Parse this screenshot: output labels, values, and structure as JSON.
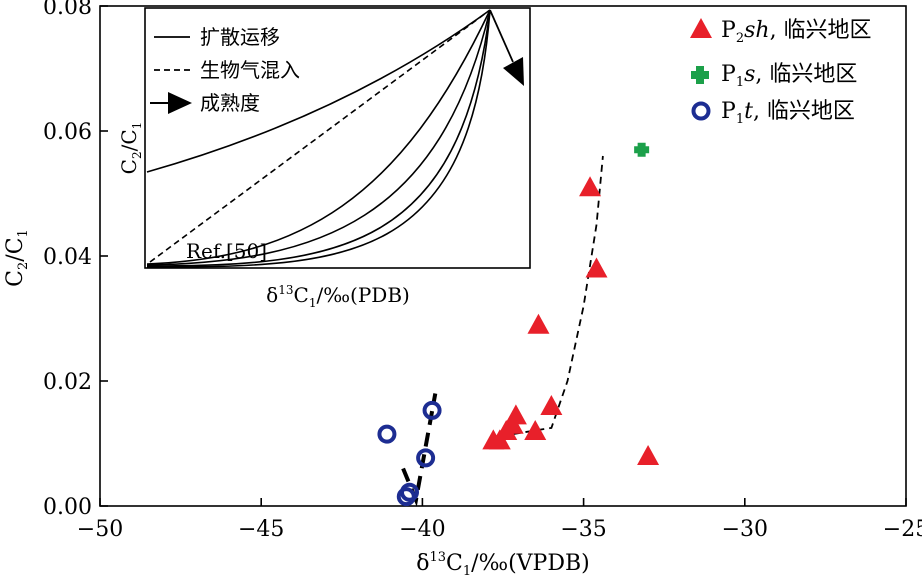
{
  "chart_data": {
    "type": "scatter",
    "xlabel": "δ13C1/‰(VPDB)",
    "ylabel": "C2/C1",
    "xlim": [
      -50,
      -25
    ],
    "ylim": [
      0,
      0.08
    ],
    "x_ticks": [
      "−50",
      "−45",
      "−40",
      "−35",
      "−30",
      "−25"
    ],
    "y_ticks": [
      "0.00",
      "0.02",
      "0.04",
      "0.06",
      "0.08"
    ],
    "series": [
      {
        "name": "P2sh, 临兴地区",
        "marker": "triangle",
        "color": "#e8202a",
        "points": [
          [
            -34.8,
            0.051
          ],
          [
            -34.6,
            0.038
          ],
          [
            -36.4,
            0.029
          ],
          [
            -36.0,
            0.016
          ],
          [
            -37.1,
            0.0145
          ],
          [
            -37.2,
            0.013
          ],
          [
            -37.4,
            0.012
          ],
          [
            -36.5,
            0.012
          ],
          [
            -37.8,
            0.0105
          ],
          [
            -37.6,
            0.0105
          ],
          [
            -33.0,
            0.008
          ]
        ]
      },
      {
        "name": "P1s, 临兴地区",
        "marker": "cross",
        "color": "#1ca04a",
        "points": [
          [
            -33.2,
            0.057
          ]
        ]
      },
      {
        "name": "P1t, 临兴地区",
        "marker": "circle",
        "color": "#1d2d92",
        "points": [
          [
            -41.1,
            0.0115
          ],
          [
            -39.7,
            0.0153
          ],
          [
            -39.9,
            0.0077
          ],
          [
            -40.4,
            0.0022
          ],
          [
            -40.5,
            0.0015
          ]
        ]
      }
    ],
    "trend_lines": [
      {
        "style": "dashed",
        "points": [
          [
            -37.8,
            0.0095
          ],
          [
            -37.2,
            0.0115
          ],
          [
            -36.6,
            0.012
          ],
          [
            -36.0,
            0.0125
          ],
          [
            -35.5,
            0.02
          ],
          [
            -35.0,
            0.032
          ],
          [
            -34.6,
            0.045
          ],
          [
            -34.4,
            0.056
          ]
        ]
      },
      {
        "style": "dashed-bold",
        "points": [
          [
            -40.6,
            0.006
          ],
          [
            -40.2,
            0.001
          ],
          [
            -39.6,
            0.018
          ]
        ]
      }
    ],
    "inset": {
      "xlabel": "δ13C1/‰(PDB)",
      "ylabel": "C2/C1",
      "legend": [
        "扩散运移",
        "生物气混入",
        "成熟度"
      ],
      "annotation": "Ref.[50]"
    }
  }
}
